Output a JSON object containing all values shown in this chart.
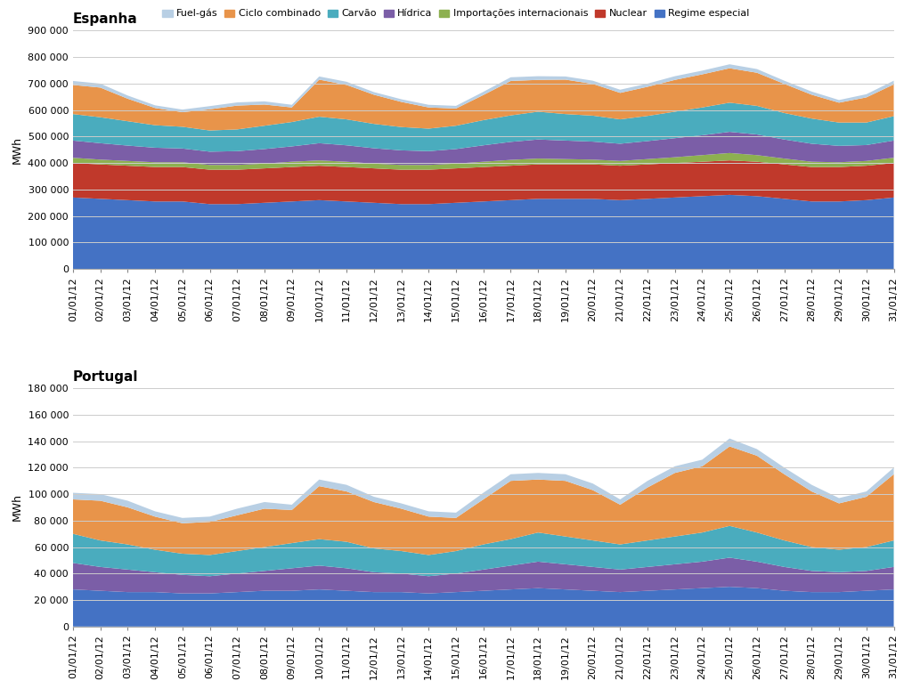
{
  "legend_labels": [
    "Fuel-gás",
    "Ciclo combinado",
    "Carvão",
    "Hídrica",
    "Importações internacionais",
    "Nuclear",
    "Regime especial"
  ],
  "legend_colors": [
    "#b8cfe4",
    "#e8944a",
    "#4aacbe",
    "#7b5ea7",
    "#8db050",
    "#c0392b",
    "#4472c4"
  ],
  "dates": [
    "01/01/12",
    "02/01/12",
    "03/01/12",
    "04/01/12",
    "05/01/12",
    "06/01/12",
    "07/01/12",
    "08/01/12",
    "09/01/12",
    "10/01/12",
    "11/01/12",
    "12/01/12",
    "13/01/12",
    "14/01/12",
    "15/01/12",
    "16/01/12",
    "17/01/12",
    "18/01/12",
    "19/01/12",
    "20/01/12",
    "21/01/12",
    "22/01/12",
    "23/01/12",
    "24/01/12",
    "25/01/12",
    "26/01/12",
    "27/01/12",
    "28/01/12",
    "29/01/12",
    "30/01/12",
    "31/01/12"
  ],
  "espanha": {
    "title": "Espanha",
    "ylabel": "MWh",
    "ylim": [
      0,
      900000
    ],
    "yticks": [
      0,
      100000,
      200000,
      300000,
      400000,
      500000,
      600000,
      700000,
      800000,
      900000
    ],
    "Regime especial": [
      270000,
      265000,
      260000,
      255000,
      255000,
      245000,
      245000,
      250000,
      255000,
      260000,
      255000,
      250000,
      245000,
      245000,
      250000,
      255000,
      260000,
      265000,
      265000,
      265000,
      260000,
      265000,
      270000,
      275000,
      280000,
      275000,
      265000,
      255000,
      255000,
      260000,
      270000
    ],
    "Nuclear": [
      130000,
      130000,
      130000,
      130000,
      130000,
      130000,
      130000,
      130000,
      130000,
      130000,
      130000,
      130000,
      130000,
      130000,
      130000,
      130000,
      130000,
      130000,
      130000,
      130000,
      130000,
      130000,
      130000,
      130000,
      130000,
      130000,
      130000,
      130000,
      130000,
      130000,
      130000
    ],
    "Importações internacionais": [
      20000,
      18000,
      18000,
      18000,
      18000,
      18000,
      18000,
      18000,
      20000,
      20000,
      20000,
      18000,
      18000,
      18000,
      18000,
      20000,
      22000,
      22000,
      20000,
      18000,
      18000,
      20000,
      22000,
      25000,
      28000,
      25000,
      22000,
      20000,
      18000,
      18000,
      20000
    ],
    "Hídrica": [
      65000,
      62000,
      58000,
      55000,
      52000,
      50000,
      52000,
      55000,
      58000,
      65000,
      62000,
      58000,
      55000,
      52000,
      55000,
      62000,
      68000,
      72000,
      70000,
      68000,
      65000,
      68000,
      72000,
      75000,
      80000,
      78000,
      72000,
      68000,
      62000,
      60000,
      65000
    ],
    "Carvão": [
      100000,
      98000,
      92000,
      85000,
      82000,
      80000,
      82000,
      88000,
      92000,
      100000,
      98000,
      92000,
      88000,
      85000,
      88000,
      95000,
      100000,
      105000,
      100000,
      98000,
      92000,
      95000,
      100000,
      105000,
      110000,
      108000,
      100000,
      95000,
      88000,
      85000,
      92000
    ],
    "Ciclo combinado": [
      110000,
      112000,
      85000,
      65000,
      55000,
      80000,
      90000,
      80000,
      55000,
      140000,
      130000,
      110000,
      95000,
      80000,
      65000,
      95000,
      130000,
      120000,
      130000,
      120000,
      100000,
      110000,
      120000,
      125000,
      130000,
      125000,
      110000,
      90000,
      75000,
      95000,
      120000
    ],
    "Fuel-gás": [
      15000,
      15000,
      12000,
      10000,
      10000,
      12000,
      12000,
      12000,
      10000,
      12000,
      12000,
      10000,
      10000,
      10000,
      10000,
      12000,
      14000,
      14000,
      12000,
      12000,
      12000,
      12000,
      14000,
      14000,
      15000,
      14000,
      12000,
      12000,
      10000,
      12000,
      14000
    ]
  },
  "portugal": {
    "title": "Portugal",
    "ylabel": "MWh",
    "ylim": [
      0,
      180000
    ],
    "yticks": [
      0,
      20000,
      40000,
      60000,
      80000,
      100000,
      120000,
      140000,
      160000,
      180000
    ],
    "Regime especial": [
      28000,
      27000,
      26000,
      26000,
      25000,
      25000,
      26000,
      27000,
      27000,
      28000,
      27000,
      26000,
      26000,
      25000,
      26000,
      27000,
      28000,
      29000,
      28000,
      27000,
      26000,
      27000,
      28000,
      29000,
      30000,
      29000,
      27000,
      26000,
      26000,
      27000,
      28000
    ],
    "Nuclear": [
      0,
      0,
      0,
      0,
      0,
      0,
      0,
      0,
      0,
      0,
      0,
      0,
      0,
      0,
      0,
      0,
      0,
      0,
      0,
      0,
      0,
      0,
      0,
      0,
      0,
      0,
      0,
      0,
      0,
      0,
      0
    ],
    "Importações internacionais": [
      0,
      0,
      0,
      0,
      0,
      0,
      0,
      0,
      0,
      0,
      0,
      0,
      0,
      0,
      0,
      0,
      0,
      0,
      0,
      0,
      0,
      0,
      0,
      0,
      0,
      0,
      0,
      0,
      0,
      0,
      0
    ],
    "Hídrica": [
      20000,
      18000,
      17000,
      15000,
      14000,
      13000,
      14000,
      15000,
      17000,
      18000,
      17000,
      15000,
      14000,
      13000,
      14000,
      16000,
      18000,
      20000,
      19000,
      18000,
      17000,
      18000,
      19000,
      20000,
      22000,
      20000,
      18000,
      16000,
      15000,
      15000,
      17000
    ],
    "Carvão": [
      22000,
      20000,
      19000,
      17000,
      16000,
      16000,
      17000,
      18000,
      19000,
      20000,
      20000,
      18000,
      17000,
      16000,
      17000,
      19000,
      20000,
      22000,
      21000,
      20000,
      19000,
      20000,
      21000,
      22000,
      24000,
      22000,
      20000,
      18000,
      17000,
      18000,
      20000
    ],
    "Ciclo combinado": [
      26000,
      30000,
      28000,
      25000,
      23000,
      25000,
      27000,
      29000,
      25000,
      40000,
      38000,
      35000,
      32000,
      29000,
      25000,
      34000,
      44000,
      40000,
      42000,
      38000,
      30000,
      40000,
      48000,
      50000,
      60000,
      58000,
      50000,
      42000,
      35000,
      38000,
      50000
    ],
    "Fuel-gás": [
      5000,
      5000,
      5000,
      4000,
      4000,
      4000,
      5000,
      5000,
      4000,
      5000,
      5000,
      4000,
      4000,
      4000,
      4000,
      5000,
      5000,
      5000,
      5000,
      5000,
      4000,
      5000,
      5000,
      5000,
      6000,
      5000,
      5000,
      5000,
      4000,
      4000,
      5000
    ]
  }
}
